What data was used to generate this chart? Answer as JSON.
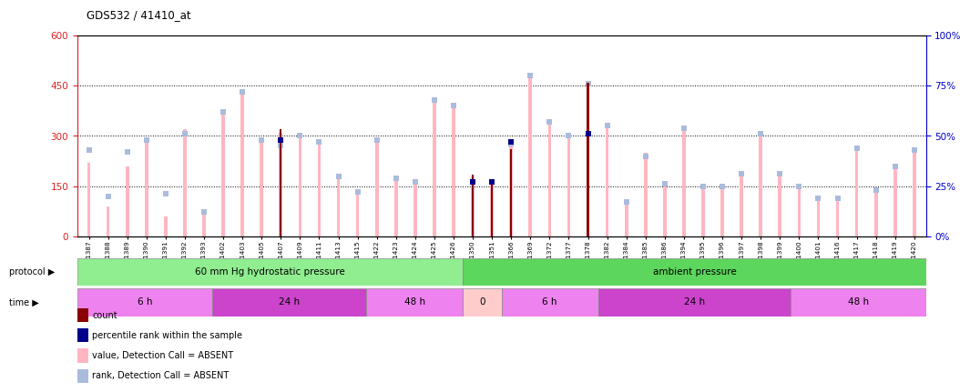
{
  "title": "GDS532 / 41410_at",
  "samples": [
    "GSM11387",
    "GSM11388",
    "GSM11389",
    "GSM11390",
    "GSM11391",
    "GSM11392",
    "GSM11393",
    "GSM11402",
    "GSM11403",
    "GSM11405",
    "GSM11407",
    "GSM11409",
    "GSM11411",
    "GSM11413",
    "GSM11415",
    "GSM11422",
    "GSM11423",
    "GSM11424",
    "GSM11425",
    "GSM11426",
    "GSM11350",
    "GSM11351",
    "GSM11366",
    "GSM11369",
    "GSM11372",
    "GSM11377",
    "GSM11378",
    "GSM11382",
    "GSM11384",
    "GSM11385",
    "GSM11386",
    "GSM11394",
    "GSM11395",
    "GSM11396",
    "GSM11397",
    "GSM11398",
    "GSM11399",
    "GSM11400",
    "GSM11401",
    "GSM11416",
    "GSM11417",
    "GSM11418",
    "GSM11419",
    "GSM11420"
  ],
  "value_bars": [
    220,
    90,
    210,
    290,
    60,
    320,
    70,
    380,
    440,
    295,
    310,
    305,
    290,
    180,
    130,
    295,
    175,
    165,
    400,
    390,
    175,
    170,
    280,
    490,
    350,
    310,
    460,
    340,
    105,
    250,
    160,
    330,
    155,
    155,
    190,
    310,
    190,
    155,
    115,
    120,
    270,
    145,
    215,
    260
  ],
  "rank_vals": [
    43,
    20,
    42,
    48,
    21,
    51,
    12,
    62,
    72,
    48,
    45,
    50,
    47,
    30,
    22,
    48,
    29,
    27,
    68,
    65,
    27,
    27,
    46,
    80,
    57,
    50,
    76,
    55,
    17,
    40,
    26,
    54,
    25,
    25,
    31,
    51,
    31,
    25,
    19,
    19,
    44,
    23,
    35,
    43
  ],
  "count_bars": [
    0,
    0,
    0,
    0,
    0,
    0,
    0,
    0,
    0,
    0,
    320,
    0,
    0,
    0,
    0,
    0,
    0,
    0,
    0,
    0,
    185,
    165,
    260,
    0,
    0,
    0,
    460,
    0,
    0,
    0,
    0,
    0,
    0,
    0,
    0,
    0,
    0,
    0,
    0,
    0,
    0,
    0,
    0,
    0
  ],
  "percentile_vals": [
    0,
    0,
    0,
    0,
    0,
    0,
    0,
    0,
    0,
    0,
    48,
    0,
    0,
    0,
    0,
    0,
    0,
    0,
    0,
    0,
    27,
    27,
    47,
    0,
    0,
    0,
    51,
    0,
    0,
    0,
    0,
    0,
    0,
    0,
    0,
    0,
    0,
    0,
    0,
    0,
    0,
    0,
    0,
    0
  ],
  "protocol_groups": [
    {
      "label": "60 mm Hg hydrostatic pressure",
      "start": 0,
      "end": 20,
      "color": "#90EE90"
    },
    {
      "label": "ambient pressure",
      "start": 20,
      "end": 44,
      "color": "#5CD65C"
    }
  ],
  "time_groups": [
    {
      "label": "6 h",
      "start": 0,
      "end": 7,
      "color": "#EE82EE"
    },
    {
      "label": "24 h",
      "start": 7,
      "end": 15,
      "color": "#DA70D6"
    },
    {
      "label": "48 h",
      "start": 15,
      "end": 20,
      "color": "#EE82EE"
    },
    {
      "label": "0",
      "start": 20,
      "end": 22,
      "color": "#FFB6C1"
    },
    {
      "label": "6 h",
      "start": 22,
      "end": 27,
      "color": "#EE82EE"
    },
    {
      "label": "24 h",
      "start": 27,
      "end": 37,
      "color": "#DA70D6"
    },
    {
      "label": "48 h",
      "start": 37,
      "end": 44,
      "color": "#EE82EE"
    }
  ],
  "ylim_left": [
    0,
    600
  ],
  "ylim_right": [
    0,
    100
  ],
  "yticks_left": [
    0,
    150,
    300,
    450,
    600
  ],
  "yticks_right": [
    0,
    25,
    50,
    75,
    100
  ],
  "color_value_absent": "#FFB6C1",
  "color_rank_absent": "#AABBDD",
  "color_count": "#8B0000",
  "color_percentile": "#00008B",
  "background_color": "#ffffff",
  "left_axis_color": "#DD2222",
  "right_axis_color": "#0000CC"
}
